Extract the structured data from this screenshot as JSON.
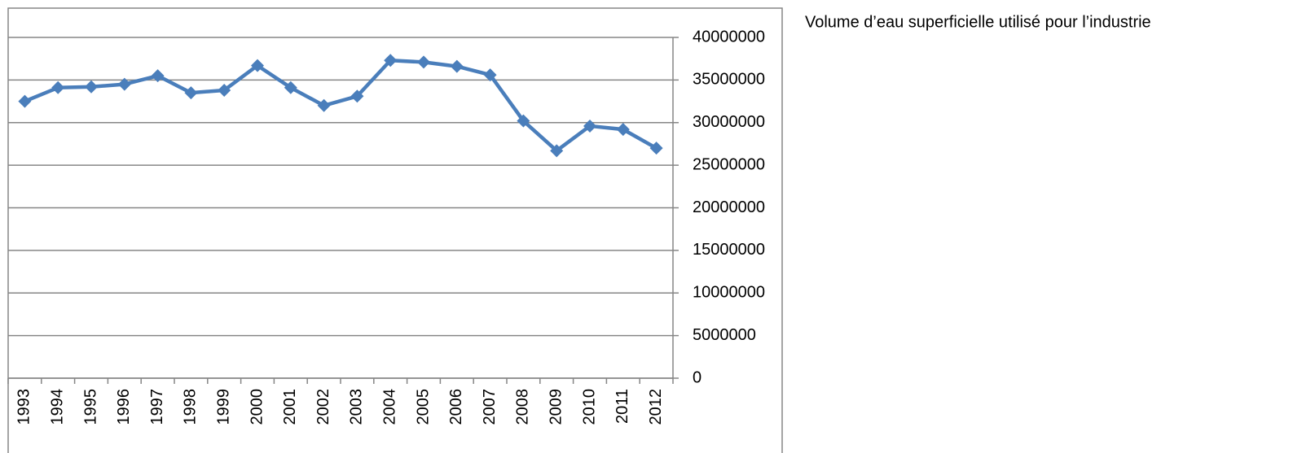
{
  "chart_data": {
    "type": "line",
    "title": "Volume d’eau superficielle utilisé pour l’industrie",
    "categories": [
      "1993",
      "1994",
      "1995",
      "1996",
      "1997",
      "1998",
      "1999",
      "2000",
      "2001",
      "2002",
      "2003",
      "2004",
      "2005",
      "2006",
      "2007",
      "2008",
      "2009",
      "2010",
      "2011",
      "2012"
    ],
    "series": [
      {
        "name": "Volume d’eau superficielle utilisé pour l’industrie",
        "color": "#4a7ebb",
        "values": [
          32500000,
          34100000,
          34200000,
          34500000,
          35500000,
          33500000,
          33800000,
          36700000,
          34100000,
          32000000,
          33100000,
          37300000,
          37100000,
          36600000,
          35600000,
          30200000,
          26700000,
          29600000,
          29200000,
          27000000
        ]
      }
    ],
    "ylim": [
      0,
      40000000
    ],
    "yticks": [
      0,
      5000000,
      10000000,
      15000000,
      20000000,
      25000000,
      30000000,
      35000000,
      40000000
    ],
    "grid": true
  }
}
